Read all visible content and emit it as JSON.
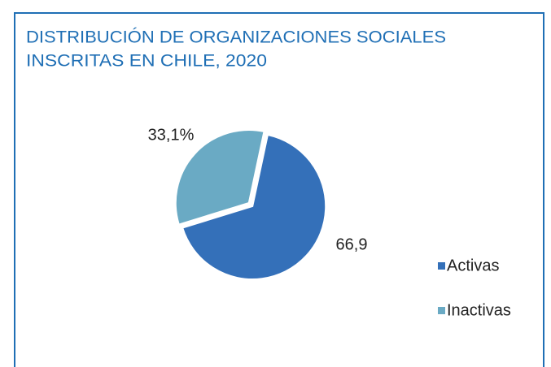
{
  "chart_data": {
    "type": "pie",
    "title": [
      "DISTRIBUCIÓN DE ORGANIZACIONES SOCIALES",
      "INSCRITAS EN CHILE, 2020"
    ],
    "categories": [
      "Activas",
      "Inactivas"
    ],
    "values": [
      66.9,
      33.1
    ],
    "value_labels": [
      "66,9",
      "33,1%"
    ],
    "colors": [
      "#3470b9",
      "#6aaac4"
    ],
    "legend": "right"
  }
}
